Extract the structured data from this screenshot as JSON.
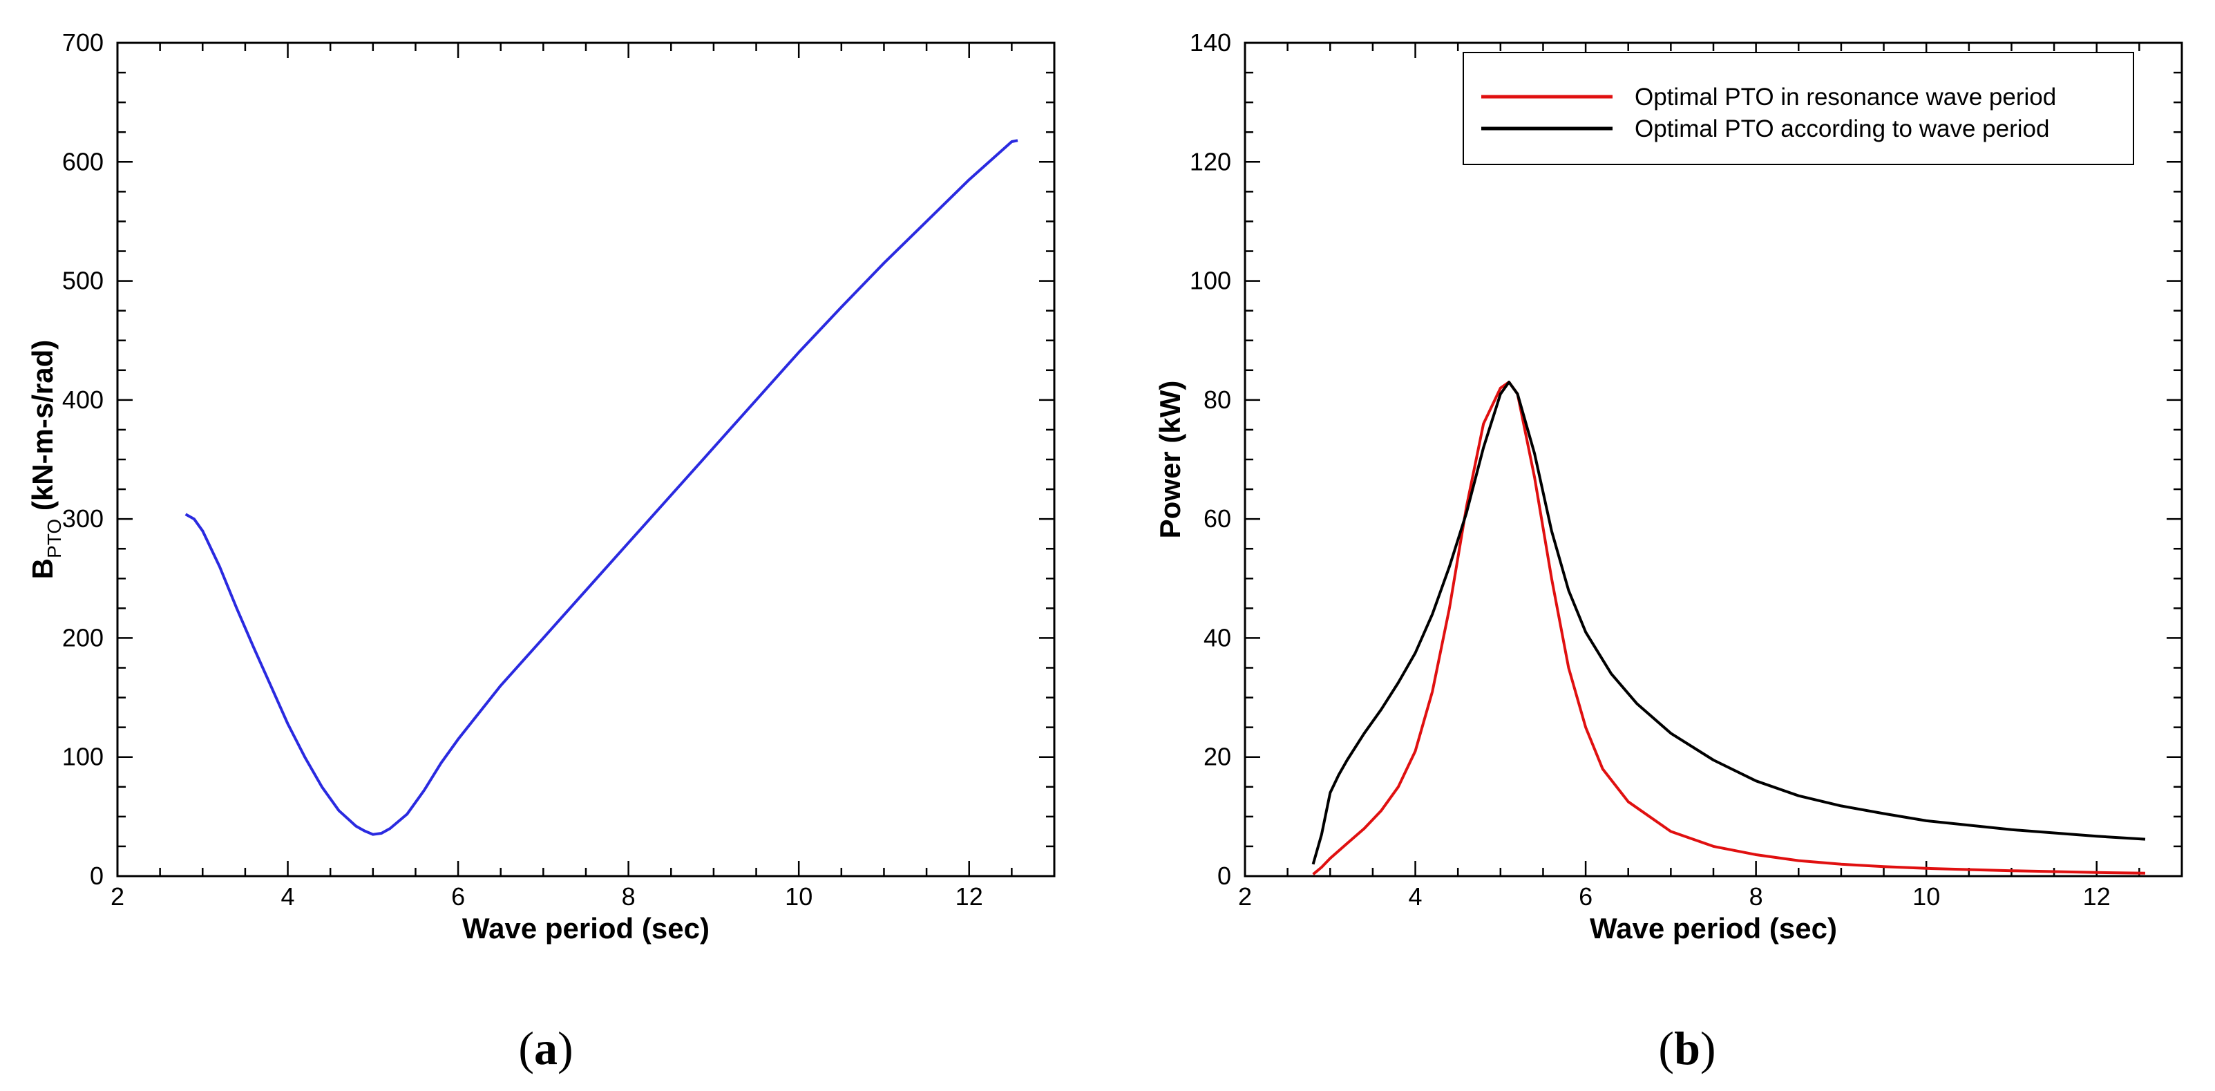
{
  "chart_data": [
    {
      "type": "line",
      "caption": "(a)",
      "caption_open": "(",
      "caption_letter": "a",
      "caption_close": ")",
      "xlabel": "Wave period (sec)",
      "ylabel_main": "B",
      "ylabel_sub": "PTO",
      "ylabel_rest": " (kN-m-s/rad)",
      "xlim": [
        2,
        13
      ],
      "ylim": [
        0,
        700
      ],
      "xticks": [
        2,
        4,
        6,
        8,
        10,
        12
      ],
      "yticks": [
        0,
        100,
        200,
        300,
        400,
        500,
        600,
        700
      ],
      "series": [
        {
          "name": "B_PTO",
          "color": "#2a2ae0",
          "x": [
            2.8,
            2.9,
            3.0,
            3.2,
            3.4,
            3.6,
            3.8,
            4.0,
            4.2,
            4.4,
            4.6,
            4.8,
            4.9,
            5.0,
            5.1,
            5.2,
            5.4,
            5.6,
            5.8,
            6.0,
            6.5,
            7.0,
            7.5,
            8.0,
            8.5,
            9.0,
            9.5,
            10.0,
            10.5,
            11.0,
            11.5,
            12.0,
            12.5,
            12.57
          ],
          "y": [
            304,
            300,
            290,
            260,
            225,
            192,
            160,
            128,
            100,
            75,
            55,
            42,
            38,
            35,
            36,
            40,
            52,
            72,
            95,
            115,
            160,
            200,
            240,
            280,
            320,
            360,
            400,
            440,
            478,
            515,
            550,
            585,
            617,
            618
          ]
        }
      ]
    },
    {
      "type": "line",
      "caption": "(b)",
      "caption_open": "(",
      "caption_letter": "b",
      "caption_close": ")",
      "xlabel": "Wave period (sec)",
      "ylabel": "Power (kW)",
      "xlim": [
        2,
        13
      ],
      "ylim": [
        0,
        140
      ],
      "xticks": [
        2,
        4,
        6,
        8,
        10,
        12
      ],
      "yticks": [
        0,
        20,
        40,
        60,
        80,
        100,
        120,
        140
      ],
      "legend_position": "top-right",
      "series": [
        {
          "name": "Optimal PTO in resonance wave period",
          "color": "#e01010",
          "x": [
            2.8,
            2.9,
            3.0,
            3.2,
            3.4,
            3.6,
            3.8,
            4.0,
            4.2,
            4.4,
            4.6,
            4.8,
            5.0,
            5.1,
            5.2,
            5.4,
            5.6,
            5.8,
            6.0,
            6.2,
            6.5,
            7.0,
            7.5,
            8.0,
            8.5,
            9.0,
            9.5,
            10.0,
            11.0,
            12.0,
            12.57
          ],
          "y": [
            0.3,
            1.5,
            3.0,
            5.5,
            8.0,
            11.0,
            15.0,
            21.0,
            31.0,
            45.0,
            62.0,
            76.0,
            82.0,
            83.0,
            81.0,
            67.0,
            50.0,
            35.0,
            25.0,
            18.0,
            12.5,
            7.5,
            5.0,
            3.6,
            2.6,
            2.0,
            1.6,
            1.3,
            0.9,
            0.6,
            0.5
          ]
        },
        {
          "name": "Optimal PTO according to wave period",
          "color": "#000000",
          "x": [
            2.8,
            2.9,
            3.0,
            3.1,
            3.2,
            3.4,
            3.6,
            3.8,
            4.0,
            4.2,
            4.4,
            4.6,
            4.8,
            5.0,
            5.1,
            5.2,
            5.4,
            5.6,
            5.8,
            6.0,
            6.3,
            6.6,
            7.0,
            7.5,
            8.0,
            8.5,
            9.0,
            9.5,
            10.0,
            11.0,
            12.0,
            12.57
          ],
          "y": [
            2.0,
            7.0,
            14.0,
            17.0,
            19.5,
            24.0,
            28.0,
            32.5,
            37.5,
            44.0,
            52.0,
            61.0,
            72.0,
            81.0,
            83.0,
            81.0,
            71.0,
            58.0,
            48.0,
            41.0,
            34.0,
            29.0,
            24.0,
            19.5,
            16.0,
            13.5,
            11.8,
            10.5,
            9.3,
            7.8,
            6.7,
            6.2
          ]
        }
      ]
    }
  ]
}
